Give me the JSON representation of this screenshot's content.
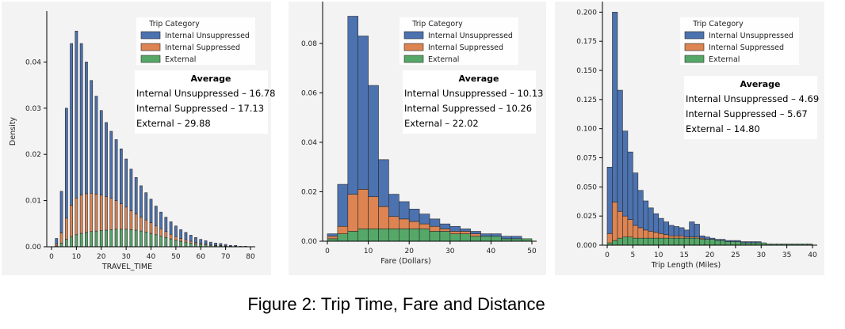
{
  "caption": "Figure 2: Trip Time, Fare and Distance",
  "colors": {
    "unsuppressed": "#4C72B0",
    "suppressed": "#DD8452",
    "external": "#55A868"
  },
  "chart_data": [
    {
      "type": "bar",
      "stacked": true,
      "xlabel": "TRAVEL_TIME",
      "ylabel": "Density",
      "xlim": [
        0,
        80
      ],
      "ylim": [
        0,
        0.05
      ],
      "xticks": [
        0,
        10,
        20,
        30,
        40,
        50,
        60,
        70,
        80
      ],
      "yticks": [
        0.0,
        0.01,
        0.02,
        0.03,
        0.04
      ],
      "ytick_labels": [
        "0.00",
        "0.01",
        "0.02",
        "0.03",
        "0.04"
      ],
      "legend": {
        "title": "Trip Category",
        "placement": "top-right",
        "entries": [
          "Internal Unsuppressed",
          "Internal Suppressed",
          "External"
        ]
      },
      "annotation": {
        "heading": "Average",
        "lines": [
          "Internal Unsuppressed – 16.78",
          "Internal Suppressed – 17.13",
          "External – 29.88"
        ]
      },
      "bin_width": 1,
      "series": [
        {
          "name": "External",
          "x": [
            2,
            4,
            6,
            8,
            10,
            12,
            14,
            16,
            18,
            20,
            22,
            24,
            26,
            28,
            30,
            32,
            34,
            36,
            38,
            40,
            42,
            44,
            46,
            48,
            50,
            52,
            54,
            56,
            58,
            60,
            62,
            64,
            66,
            68,
            70,
            72,
            74,
            76,
            78
          ],
          "values": [
            0.0002,
            0.0008,
            0.0016,
            0.0022,
            0.0026,
            0.0029,
            0.0031,
            0.0033,
            0.0034,
            0.0035,
            0.0036,
            0.0037,
            0.0038,
            0.0038,
            0.0038,
            0.0037,
            0.0036,
            0.0034,
            0.0032,
            0.0029,
            0.0026,
            0.0023,
            0.002,
            0.0017,
            0.0014,
            0.0012,
            0.001,
            0.0008,
            0.0006,
            0.0005,
            0.0004,
            0.0003,
            0.0002,
            0.0002,
            0.0001,
            0.0001,
            0.0001,
            0.0,
            0.0
          ]
        },
        {
          "name": "Internal Suppressed",
          "x": [
            2,
            4,
            6,
            8,
            10,
            12,
            14,
            16,
            18,
            20,
            22,
            24,
            26,
            28,
            30,
            32,
            34,
            36,
            38,
            40,
            42,
            44,
            46,
            48,
            50,
            52,
            54,
            56,
            58,
            60,
            62,
            64,
            66,
            68,
            70,
            72,
            74,
            76,
            78
          ],
          "values": [
            0.0004,
            0.0022,
            0.0046,
            0.0068,
            0.0079,
            0.0083,
            0.0084,
            0.0083,
            0.008,
            0.0077,
            0.0073,
            0.0068,
            0.0062,
            0.0055,
            0.0048,
            0.0041,
            0.0035,
            0.003,
            0.0026,
            0.0023,
            0.0019,
            0.0016,
            0.0013,
            0.001,
            0.0008,
            0.0006,
            0.0005,
            0.0004,
            0.0003,
            0.0002,
            0.0002,
            0.0001,
            0.0001,
            0.0001,
            0.0001,
            0.0,
            0.0,
            0.0,
            0.0
          ]
        },
        {
          "name": "Internal Unsuppressed",
          "x": [
            2,
            4,
            6,
            8,
            10,
            12,
            14,
            16,
            18,
            20,
            22,
            24,
            26,
            28,
            30,
            32,
            34,
            36,
            38,
            40,
            42,
            44,
            46,
            48,
            50,
            52,
            54,
            56,
            58,
            60,
            62,
            64,
            66,
            68,
            70,
            72,
            74,
            76,
            78
          ],
          "values": [
            0.0012,
            0.009,
            0.0238,
            0.035,
            0.0362,
            0.0328,
            0.0285,
            0.0244,
            0.0212,
            0.0183,
            0.016,
            0.0145,
            0.0132,
            0.0119,
            0.0104,
            0.009,
            0.0079,
            0.0068,
            0.0059,
            0.0051,
            0.0043,
            0.0036,
            0.0031,
            0.0027,
            0.0023,
            0.0019,
            0.0016,
            0.0013,
            0.0011,
            0.0009,
            0.0007,
            0.0006,
            0.0005,
            0.0004,
            0.0003,
            0.0002,
            0.0002,
            0.0001,
            0.0001
          ]
        }
      ]
    },
    {
      "type": "bar",
      "stacked": true,
      "xlabel": "Fare (Dollars)",
      "ylabel": "",
      "xlim": [
        0,
        50
      ],
      "ylim": [
        0,
        0.095
      ],
      "xticks": [
        0,
        10,
        20,
        30,
        40,
        50
      ],
      "yticks": [
        0.0,
        0.02,
        0.04,
        0.06,
        0.08
      ],
      "ytick_labels": [
        "0.00",
        "0.02",
        "0.04",
        "0.06",
        "0.08"
      ],
      "legend": {
        "title": "Trip Category",
        "placement": "top-right",
        "entries": [
          "Internal Unsuppressed",
          "Internal Suppressed",
          "External"
        ]
      },
      "annotation": {
        "heading": "Average",
        "lines": [
          "Internal Unsuppressed – 10.13",
          "Internal Suppressed – 10.26",
          "External – 22.02"
        ]
      },
      "bin_width": 2.5,
      "series": [
        {
          "name": "External",
          "x": [
            1.25,
            3.75,
            6.25,
            8.75,
            11.25,
            13.75,
            16.25,
            18.75,
            21.25,
            23.75,
            26.25,
            28.75,
            31.25,
            33.75,
            36.25,
            38.75,
            41.25,
            43.75,
            46.25,
            48.75
          ],
          "values": [
            0.001,
            0.003,
            0.004,
            0.005,
            0.005,
            0.005,
            0.005,
            0.005,
            0.005,
            0.005,
            0.004,
            0.004,
            0.003,
            0.003,
            0.002,
            0.002,
            0.002,
            0.001,
            0.001,
            0.001
          ]
        },
        {
          "name": "Internal Suppressed",
          "x": [
            1.25,
            3.75,
            6.25,
            8.75,
            11.25,
            13.75,
            16.25,
            18.75,
            21.25,
            23.75,
            26.25,
            28.75,
            31.25,
            33.75,
            36.25,
            38.75,
            41.25,
            43.75,
            46.25,
            48.75
          ],
          "values": [
            0.001,
            0.003,
            0.015,
            0.016,
            0.013,
            0.009,
            0.005,
            0.004,
            0.003,
            0.002,
            0.002,
            0.001,
            0.001,
            0.001,
            0.001,
            0.0,
            0.0,
            0.0,
            0.0,
            0.0
          ]
        },
        {
          "name": "Internal Unsuppressed",
          "x": [
            1.25,
            3.75,
            6.25,
            8.75,
            11.25,
            13.75,
            16.25,
            18.75,
            21.25,
            23.75,
            26.25,
            28.75,
            31.25,
            33.75,
            36.25,
            38.75,
            41.25,
            43.75,
            46.25,
            48.75
          ],
          "values": [
            0.001,
            0.017,
            0.072,
            0.062,
            0.045,
            0.019,
            0.009,
            0.007,
            0.005,
            0.004,
            0.003,
            0.002,
            0.002,
            0.001,
            0.001,
            0.001,
            0.001,
            0.001,
            0.001,
            0.0
          ]
        }
      ]
    },
    {
      "type": "bar",
      "stacked": true,
      "xlabel": "Trip Length (Miles)",
      "ylabel": "",
      "xlim": [
        0,
        40
      ],
      "ylim": [
        0,
        0.205
      ],
      "xticks": [
        0,
        5,
        10,
        15,
        20,
        25,
        30,
        35,
        40
      ],
      "yticks": [
        0.0,
        0.025,
        0.05,
        0.075,
        0.1,
        0.125,
        0.15,
        0.175,
        0.2
      ],
      "ytick_labels": [
        "0.000",
        "0.025",
        "0.050",
        "0.075",
        "0.100",
        "0.125",
        "0.150",
        "0.175",
        "0.200"
      ],
      "legend": {
        "title": "Trip Category",
        "placement": "top-right",
        "entries": [
          "Internal Unsuppressed",
          "Internal Suppressed",
          "External"
        ]
      },
      "annotation": {
        "heading": "Average",
        "lines": [
          "Internal Unsuppressed – 4.69",
          "Internal Suppressed – 5.67",
          "External – 14.80"
        ]
      },
      "bin_width": 1,
      "series": [
        {
          "name": "External",
          "x": [
            0.5,
            1.5,
            2.5,
            3.5,
            4.5,
            5.5,
            6.5,
            7.5,
            8.5,
            9.5,
            10.5,
            11.5,
            12.5,
            13.5,
            14.5,
            15.5,
            16.5,
            17.5,
            18.5,
            19.5,
            20.5,
            21.5,
            22.5,
            23.5,
            24.5,
            25.5,
            26.5,
            27.5,
            28.5,
            29.5,
            30.5,
            31.5,
            32.5,
            33.5,
            34.5,
            35.5,
            36.5,
            37.5,
            38.5,
            39.5
          ],
          "values": [
            0.002,
            0.004,
            0.006,
            0.007,
            0.007,
            0.006,
            0.006,
            0.006,
            0.006,
            0.006,
            0.006,
            0.006,
            0.006,
            0.006,
            0.006,
            0.006,
            0.006,
            0.006,
            0.005,
            0.005,
            0.005,
            0.004,
            0.004,
            0.003,
            0.003,
            0.003,
            0.002,
            0.002,
            0.002,
            0.002,
            0.002,
            0.001,
            0.001,
            0.001,
            0.001,
            0.001,
            0.001,
            0.001,
            0.001,
            0.001
          ]
        },
        {
          "name": "Internal Suppressed",
          "x": [
            0.5,
            1.5,
            2.5,
            3.5,
            4.5,
            5.5,
            6.5,
            7.5,
            8.5,
            9.5,
            10.5,
            11.5,
            12.5,
            13.5,
            14.5,
            15.5,
            16.5,
            17.5,
            18.5,
            19.5,
            20.5,
            21.5,
            22.5,
            23.5,
            24.5,
            25.5,
            26.5,
            27.5,
            28.5,
            29.5,
            30.5,
            31.5,
            32.5,
            33.5,
            34.5,
            35.5,
            36.5,
            37.5,
            38.5,
            39.5
          ],
          "values": [
            0.008,
            0.033,
            0.023,
            0.018,
            0.015,
            0.011,
            0.009,
            0.007,
            0.006,
            0.005,
            0.004,
            0.003,
            0.002,
            0.002,
            0.002,
            0.001,
            0.001,
            0.001,
            0.001,
            0.0,
            0.0,
            0.0,
            0.0,
            0.0,
            0.0,
            0.0,
            0.0,
            0.0,
            0.0,
            0.0,
            0.0,
            0.0,
            0.0,
            0.0,
            0.0,
            0.0,
            0.0,
            0.0,
            0.0,
            0.0
          ]
        },
        {
          "name": "Internal Unsuppressed",
          "x": [
            0.5,
            1.5,
            2.5,
            3.5,
            4.5,
            5.5,
            6.5,
            7.5,
            8.5,
            9.5,
            10.5,
            11.5,
            12.5,
            13.5,
            14.5,
            15.5,
            16.5,
            17.5,
            18.5,
            19.5,
            20.5,
            21.5,
            22.5,
            23.5,
            24.5,
            25.5,
            26.5,
            27.5,
            28.5,
            29.5,
            30.5,
            31.5,
            32.5,
            33.5,
            34.5,
            35.5,
            36.5,
            37.5,
            38.5,
            39.5
          ],
          "values": [
            0.057,
            0.163,
            0.104,
            0.073,
            0.058,
            0.045,
            0.032,
            0.025,
            0.02,
            0.016,
            0.013,
            0.011,
            0.009,
            0.008,
            0.007,
            0.006,
            0.013,
            0.011,
            0.002,
            0.002,
            0.001,
            0.001,
            0.001,
            0.001,
            0.001,
            0.001,
            0.001,
            0.001,
            0.001,
            0.001,
            0.0,
            0.0,
            0.0,
            0.0,
            0.0,
            0.0,
            0.0,
            0.0,
            0.0,
            0.0
          ]
        }
      ]
    }
  ]
}
